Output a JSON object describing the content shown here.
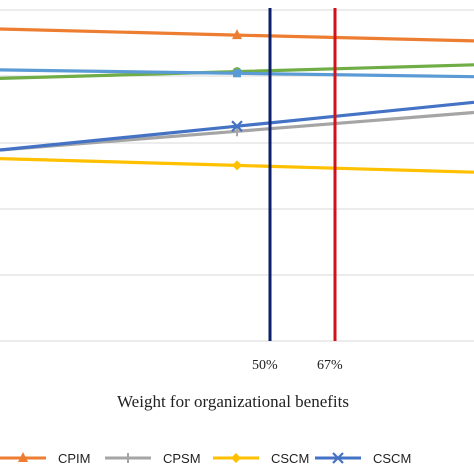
{
  "chart_data": {
    "type": "line",
    "title": "",
    "xlabel": "Weight for organizational benefits",
    "ylabel": "",
    "x_markers": [
      {
        "value": 0.5,
        "label": "50%",
        "color": "#0b1f6b"
      },
      {
        "value": 0.67,
        "label": "67%",
        "color": "#d0121b"
      }
    ],
    "xlim": [
      0,
      1
    ],
    "ylim": [
      0,
      1
    ],
    "grid": "horizontal",
    "legend_position": "bottom",
    "series": [
      {
        "name": "CPIM",
        "color": "#ED7D31",
        "marker": "triangle",
        "x": [
          0,
          0.5,
          1
        ],
        "y": [
          0.915,
          0.897,
          0.88
        ]
      },
      {
        "name": "CPSM",
        "color": "#A5A5A5",
        "marker": "plus",
        "x": [
          0,
          0.5,
          1
        ],
        "y": [
          0.56,
          0.615,
          0.67
        ]
      },
      {
        "name": "CSCM",
        "color": "#FFC000",
        "marker": "diamond",
        "x": [
          0,
          0.5,
          1
        ],
        "y": [
          0.535,
          0.515,
          0.495
        ]
      },
      {
        "name": "CSCM",
        "color": "#4472C4",
        "marker": "x",
        "x": [
          0,
          0.5,
          1
        ],
        "y": [
          0.56,
          0.63,
          0.7
        ]
      },
      {
        "name": "",
        "color": "#70AD47",
        "marker": "circle",
        "x": [
          0,
          0.5,
          1
        ],
        "y": [
          0.77,
          0.79,
          0.81
        ]
      },
      {
        "name": "",
        "color": "#5B9BD5",
        "marker": "square",
        "x": [
          0,
          0.5,
          1
        ],
        "y": [
          0.795,
          0.785,
          0.775
        ]
      }
    ]
  }
}
